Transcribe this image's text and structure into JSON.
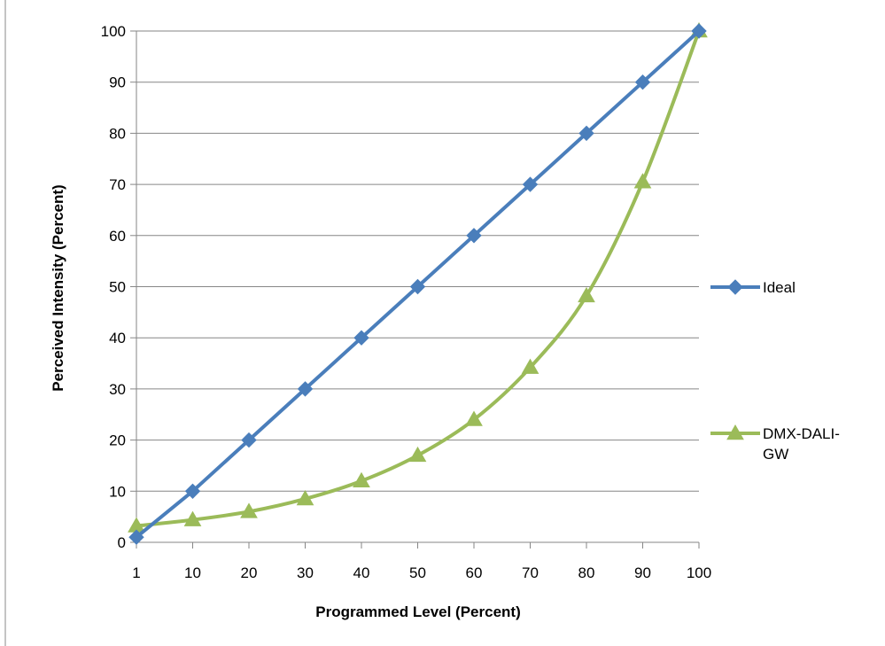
{
  "chart_data": {
    "type": "line",
    "title": "",
    "xlabel": "Programmed Level (Percent)",
    "ylabel": "Perceived Intensity (Percent)",
    "categories": [
      "1",
      "10",
      "20",
      "30",
      "40",
      "50",
      "60",
      "70",
      "80",
      "90",
      "100"
    ],
    "y_ticks": [
      "0",
      "10",
      "20",
      "30",
      "40",
      "50",
      "60",
      "70",
      "80",
      "90",
      "100"
    ],
    "ylim": [
      0,
      100
    ],
    "grid": true,
    "legend_position": "right",
    "series": [
      {
        "name": "Ideal",
        "legend_lines": [
          "Ideal"
        ],
        "color": "#4a7ebb",
        "marker": "diamond",
        "values": [
          1,
          10,
          20,
          30,
          40,
          50,
          60,
          70,
          80,
          90,
          100
        ]
      },
      {
        "name": "DMX-DALI-GW",
        "legend_lines": [
          "DMX-DALI-",
          "GW"
        ],
        "color": "#9bbb59",
        "marker": "triangle",
        "values": [
          3.2,
          4.4,
          6,
          8.5,
          12,
          17,
          24,
          34.2,
          48.2,
          70.5,
          100
        ]
      }
    ]
  }
}
